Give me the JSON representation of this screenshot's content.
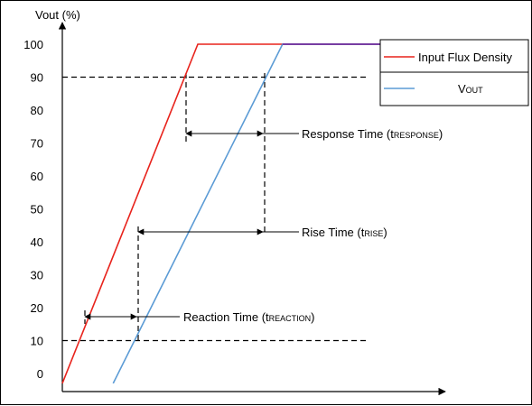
{
  "chart_data": {
    "type": "line",
    "ylabel": "Vout (%)",
    "yticks": [
      0,
      10,
      20,
      30,
      40,
      50,
      60,
      70,
      80,
      90,
      100
    ],
    "series": [
      {
        "name": "Input Flux Density",
        "color": "#e8231c",
        "points": [
          [
            0,
            -3
          ],
          [
            4,
            100
          ],
          [
            10,
            100
          ]
        ]
      },
      {
        "name": "VOUT",
        "color": "#5b9bd5",
        "points": [
          [
            1.5,
            -3
          ],
          [
            6.5,
            100
          ],
          [
            10,
            100
          ]
        ]
      }
    ],
    "overlap_color": "#7030a0",
    "reference_lines": [
      10,
      90
    ],
    "annotations": [
      {
        "label_main": "Response Time (t",
        "label_sub": "RESPONSE",
        "label_end": ")"
      },
      {
        "label_main": "Rise Time (t",
        "label_sub": "RISE",
        "label_end": ")"
      },
      {
        "label_main": "Reaction Time (t",
        "label_sub": "REACTION",
        "label_end": ")"
      }
    ],
    "legend": {
      "placement": "top-right",
      "items": [
        {
          "label_main": "Input Flux Density",
          "label_sub": ""
        },
        {
          "label_main": "V",
          "label_sub": "OUT"
        }
      ]
    }
  }
}
